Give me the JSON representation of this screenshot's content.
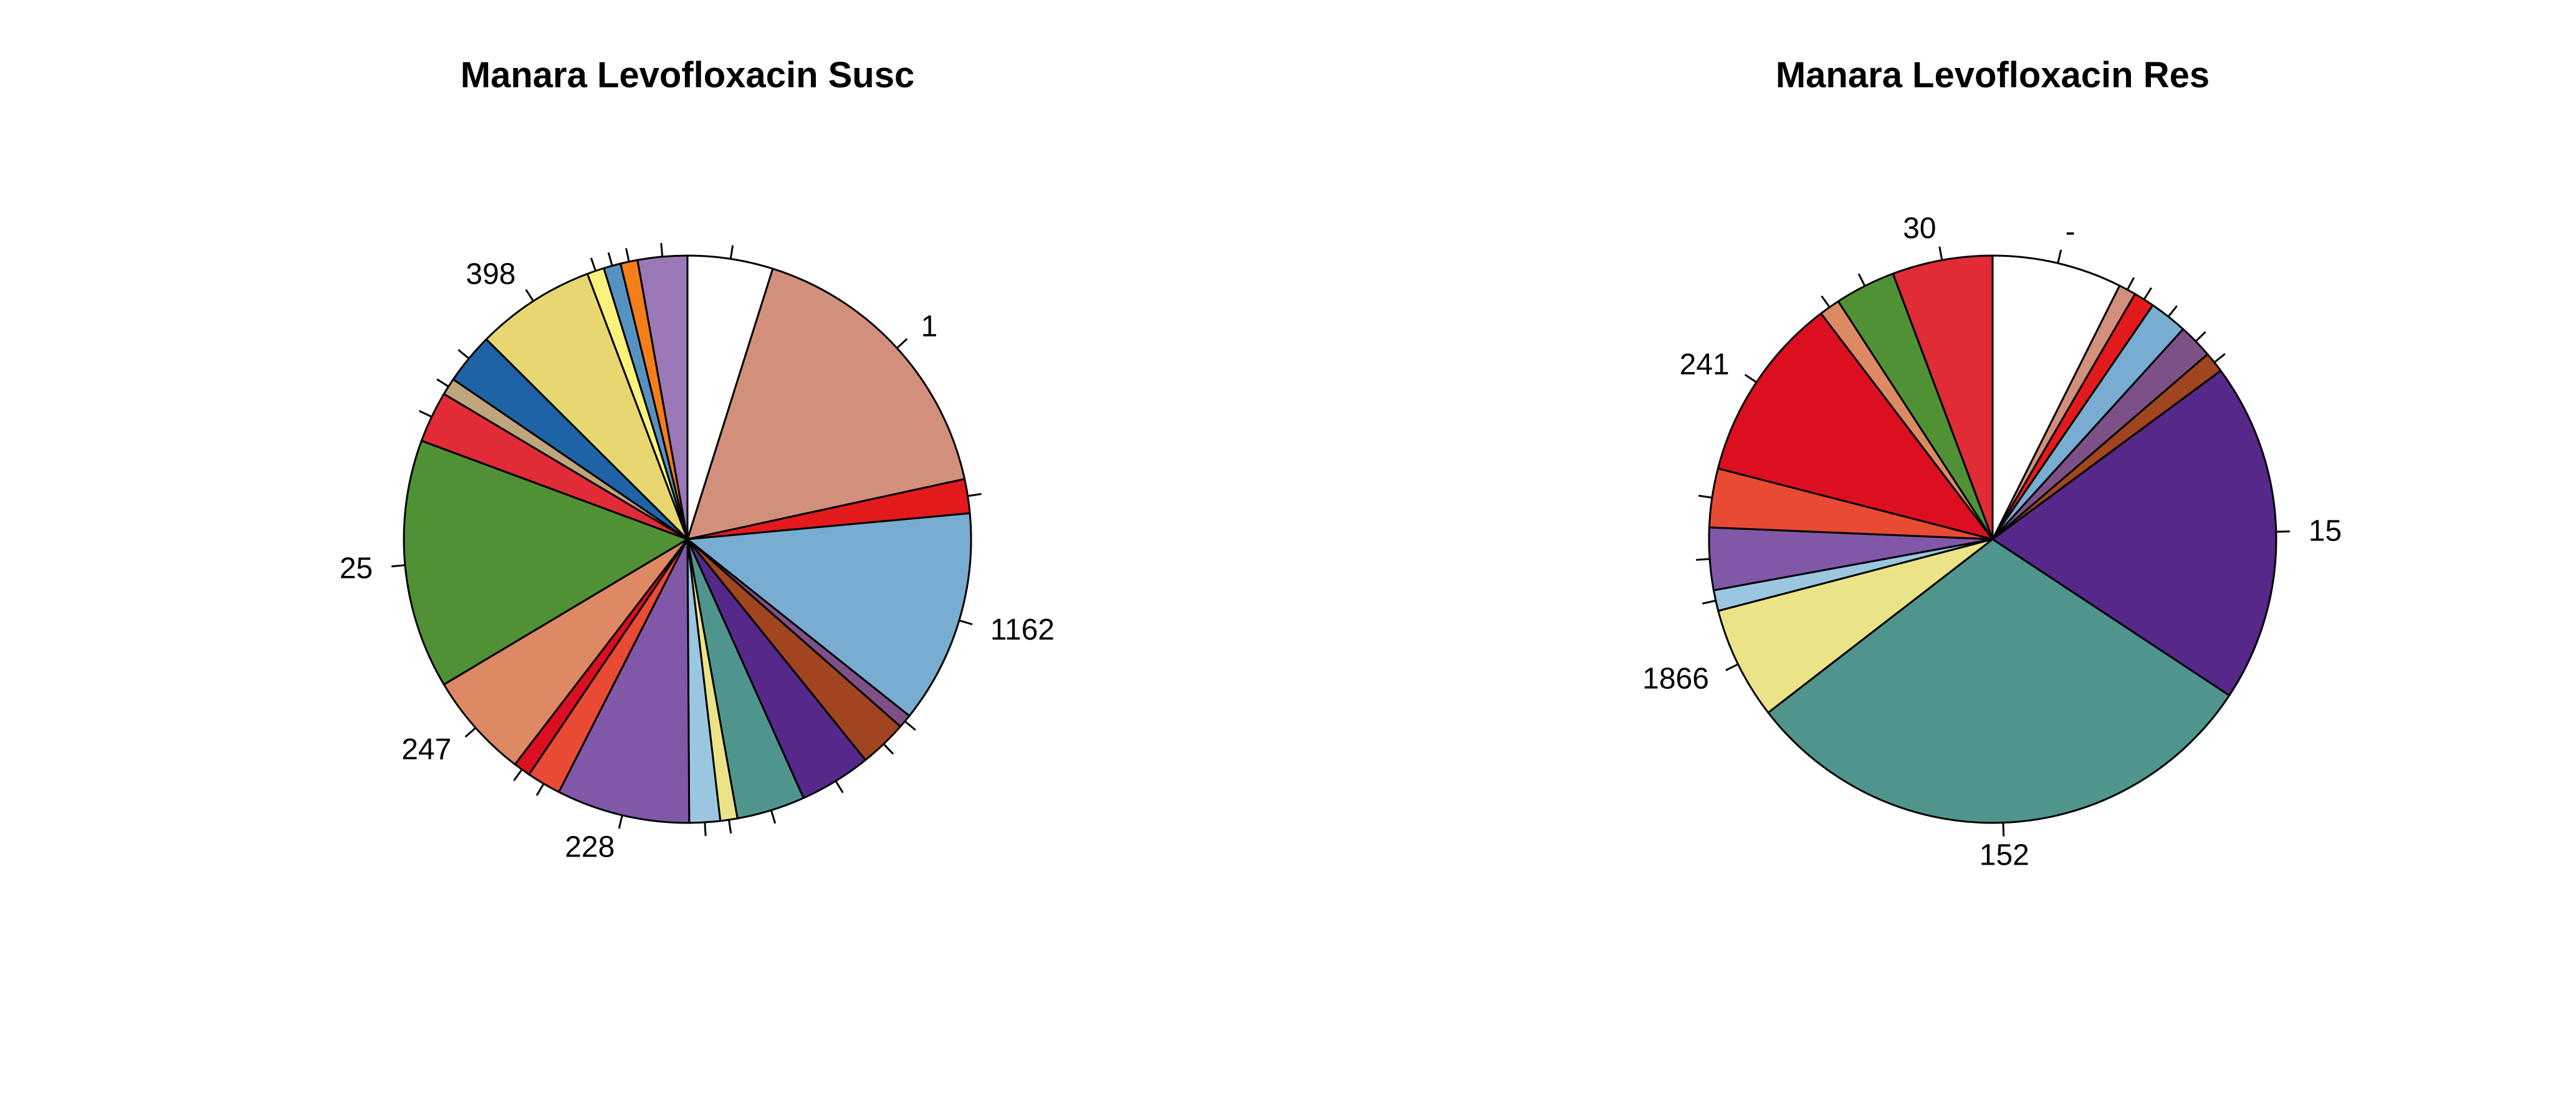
{
  "chart_data": [
    {
      "type": "pie",
      "title": "Manara Levofloxacin Susc",
      "start_angle_deg": 90,
      "direction": "clockwise",
      "slices": [
        {
          "label": "",
          "value": 5.0,
          "color": "#ffffff"
        },
        {
          "label": "1",
          "value": 17.2,
          "color": "#d2907c"
        },
        {
          "label": "",
          "value": 2.0,
          "color": "#e31a1c"
        },
        {
          "label": "1162",
          "value": 12.5,
          "color": "#78acd0"
        },
        {
          "label": "",
          "value": 0.8,
          "color": "#7d5187"
        },
        {
          "label": "",
          "value": 2.8,
          "color": "#a0451f"
        },
        {
          "label": "",
          "value": 4.2,
          "color": "#55288a"
        },
        {
          "label": "",
          "value": 4.0,
          "color": "#4f958d"
        },
        {
          "label": "",
          "value": 1.0,
          "color": "#ebe387"
        },
        {
          "label": "",
          "value": 1.8,
          "color": "#9bc6df"
        },
        {
          "label": "228",
          "value": 7.8,
          "color": "#8157a8"
        },
        {
          "label": "",
          "value": 2.0,
          "color": "#e84a34"
        },
        {
          "label": "",
          "value": 1.0,
          "color": "#dc0f20"
        },
        {
          "label": "247",
          "value": 6.2,
          "color": "#dc8964"
        },
        {
          "label": "25",
          "value": 14.6,
          "color": "#4f9134"
        },
        {
          "label": "",
          "value": 3.0,
          "color": "#e12b37"
        },
        {
          "label": "",
          "value": 1.0,
          "color": "#bfa47e"
        },
        {
          "label": "",
          "value": 3.0,
          "color": "#1f63a7"
        },
        {
          "label": "398",
          "value": 7.0,
          "color": "#e8d671"
        },
        {
          "label": "",
          "value": 1.0,
          "color": "#fbf27b"
        },
        {
          "label": "",
          "value": 1.0,
          "color": "#5592c2"
        },
        {
          "label": "",
          "value": 1.0,
          "color": "#f57d1a"
        },
        {
          "label": "",
          "value": 2.9,
          "color": "#9b78b8"
        }
      ]
    },
    {
      "type": "pie",
      "title": "Manara Levofloxacin Res",
      "start_angle_deg": 90,
      "direction": "clockwise",
      "slices": [
        {
          "label": "-",
          "value": 7.5,
          "color": "#ffffff"
        },
        {
          "label": "",
          "value": 1.0,
          "color": "#d2907c"
        },
        {
          "label": "",
          "value": 1.2,
          "color": "#e31a1c"
        },
        {
          "label": "",
          "value": 2.2,
          "color": "#78acd0"
        },
        {
          "label": "",
          "value": 2.0,
          "color": "#7d5187"
        },
        {
          "label": "",
          "value": 1.2,
          "color": "#a0451f"
        },
        {
          "label": "15",
          "value": 19.7,
          "color": "#55288a"
        },
        {
          "label": "152",
          "value": 30.7,
          "color": "#4f958d"
        },
        {
          "label": "1866",
          "value": 6.5,
          "color": "#ebe387"
        },
        {
          "label": "",
          "value": 1.2,
          "color": "#9bc6df"
        },
        {
          "label": "",
          "value": 3.6,
          "color": "#8157a8"
        },
        {
          "label": "",
          "value": 3.4,
          "color": "#e84a34"
        },
        {
          "label": "241",
          "value": 10.8,
          "color": "#dc0f20"
        },
        {
          "label": "",
          "value": 1.2,
          "color": "#dc8964"
        },
        {
          "label": "",
          "value": 3.5,
          "color": "#4f9134"
        },
        {
          "label": "30",
          "value": 5.8,
          "color": "#e12b37"
        }
      ]
    }
  ]
}
